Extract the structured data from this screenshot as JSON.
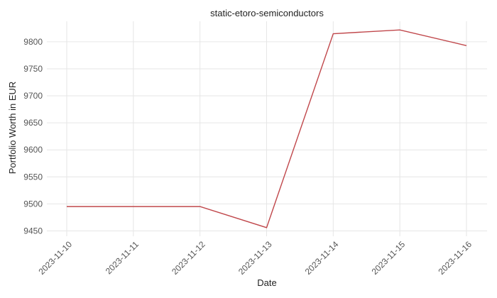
{
  "chart_data": {
    "type": "line",
    "title": "static-etoro-semiconductors",
    "xlabel": "Date",
    "ylabel": "Portfolio Worth in EUR",
    "categories": [
      "2023-11-10",
      "2023-11-11",
      "2023-11-12",
      "2023-11-13",
      "2023-11-14",
      "2023-11-15",
      "2023-11-16"
    ],
    "yticks": [
      9450,
      9500,
      9550,
      9600,
      9650,
      9700,
      9750,
      9800
    ],
    "ylim": [
      9440,
      9838
    ],
    "grid": true,
    "legend": "none",
    "series": [
      {
        "color": "#c0474b",
        "points": [
          {
            "x": "2023-11-10",
            "y": 9495
          },
          {
            "x": "2023-11-12",
            "y": 9495
          },
          {
            "x": "2023-11-13",
            "y": 9456
          },
          {
            "x": "2023-11-14",
            "y": 9815
          },
          {
            "x": "2023-11-15",
            "y": 9822
          },
          {
            "x": "2023-11-16",
            "y": 9793
          }
        ]
      }
    ]
  }
}
